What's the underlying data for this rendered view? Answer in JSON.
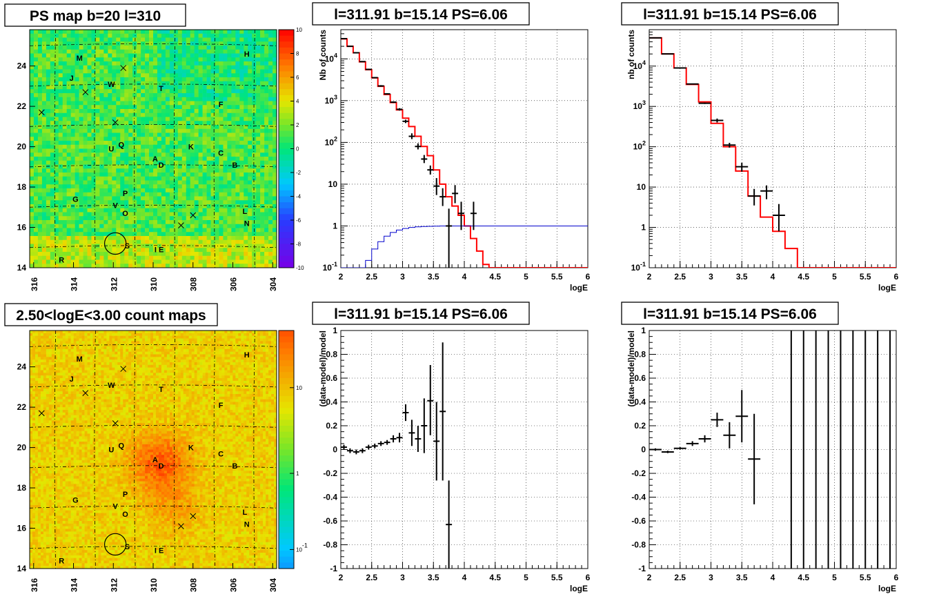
{
  "map_panels": [
    {
      "title": "PS map b=20 l=310",
      "x_ticks": [
        "316",
        "314",
        "312",
        "310",
        "308",
        "306",
        "304"
      ],
      "y_ticks": [
        "14",
        "16",
        "18",
        "20",
        "22",
        "24"
      ],
      "colorbar_ticks": [
        "10",
        "8",
        "6",
        "4",
        "2",
        "0",
        "-2",
        "-4",
        "-6",
        "-8",
        "-10"
      ],
      "palette": "ps"
    },
    {
      "title": "2.50<logE<3.00 count maps",
      "x_ticks": [
        "316",
        "314",
        "312",
        "310",
        "308",
        "306",
        "304"
      ],
      "y_ticks": [
        "14",
        "16",
        "18",
        "20",
        "22",
        "24"
      ],
      "colorbar_ticks": [
        "10",
        "1",
        "10^-1"
      ],
      "palette": "counts"
    }
  ],
  "source_labels": [
    {
      "t": "M",
      "l": 313.7,
      "b": 24.4
    },
    {
      "t": "H",
      "l": 305.3,
      "b": 24.6
    },
    {
      "t": "J",
      "l": 314.1,
      "b": 23.4
    },
    {
      "t": "W",
      "l": 312.1,
      "b": 23.1
    },
    {
      "t": "T",
      "l": 309.6,
      "b": 22.9
    },
    {
      "t": "F",
      "l": 306.6,
      "b": 22.1
    },
    {
      "t": "U",
      "l": 312.1,
      "b": 19.9
    },
    {
      "t": "Q",
      "l": 311.6,
      "b": 20.1
    },
    {
      "t": "K",
      "l": 308.1,
      "b": 20.0
    },
    {
      "t": "C",
      "l": 306.6,
      "b": 19.7
    },
    {
      "t": "A",
      "l": 309.9,
      "b": 19.4
    },
    {
      "t": "D",
      "l": 309.6,
      "b": 19.1
    },
    {
      "t": "B",
      "l": 305.9,
      "b": 19.1
    },
    {
      "t": "G",
      "l": 313.9,
      "b": 17.4
    },
    {
      "t": "P",
      "l": 311.4,
      "b": 17.7
    },
    {
      "t": "V",
      "l": 311.9,
      "b": 17.1
    },
    {
      "t": "O",
      "l": 311.4,
      "b": 16.7
    },
    {
      "t": "L",
      "l": 305.4,
      "b": 16.8
    },
    {
      "t": "N",
      "l": 305.3,
      "b": 16.2
    },
    {
      "t": "S",
      "l": 311.3,
      "b": 15.1
    },
    {
      "t": "I E",
      "l": 309.7,
      "b": 14.9
    },
    {
      "t": "R",
      "l": 314.6,
      "b": 14.4
    }
  ],
  "crosses": [
    {
      "l": 311.5,
      "b": 23.9
    },
    {
      "l": 313.4,
      "b": 22.7
    },
    {
      "l": 315.6,
      "b": 21.7
    },
    {
      "l": 311.9,
      "b": 21.2
    },
    {
      "l": 308.6,
      "b": 16.1
    },
    {
      "l": 308.0,
      "b": 16.6
    }
  ],
  "circle": {
    "l": 311.9,
    "b": 15.2,
    "r": 0.45
  },
  "chart_data": [
    {
      "type": "line",
      "title": "l=311.91 b=15.14 PS=6.06",
      "xlabel": "logE",
      "ylabel": "Nb of counts",
      "yscale": "log",
      "xlim": [
        2,
        6
      ],
      "ylim": [
        0.1,
        50000
      ],
      "x_ticks": [
        "2",
        "2.5",
        "3",
        "3.5",
        "4",
        "4.5",
        "5",
        "5.5",
        "6"
      ],
      "y_ticks": [
        "10^-1",
        "1",
        "10",
        "10^2",
        "10^3",
        "10^4"
      ],
      "series": [
        {
          "style": "step",
          "color": "#ff0000",
          "bin_edges": [
            2.0,
            2.1,
            2.2,
            2.3,
            2.4,
            2.5,
            2.6,
            2.7,
            2.8,
            2.9,
            3.0,
            3.1,
            3.2,
            3.3,
            3.4,
            3.5,
            3.6,
            3.7,
            3.8,
            3.9,
            4.0,
            4.1,
            4.2,
            4.3,
            4.4,
            6.0
          ],
          "values": [
            30000,
            20000,
            14000,
            8500,
            5500,
            3500,
            2200,
            1400,
            900,
            600,
            380,
            240,
            140,
            80,
            48,
            22,
            10,
            5,
            3,
            1.8,
            1.0,
            0.5,
            0.25,
            0.12,
            0.1
          ]
        },
        {
          "style": "step",
          "color": "#0000cc",
          "bin_edges": [
            2.0,
            2.1,
            2.2,
            2.3,
            2.4,
            2.5,
            2.6,
            2.7,
            2.8,
            2.9,
            3.0,
            3.1,
            3.2,
            3.3,
            3.4,
            3.5,
            3.6,
            3.7,
            3.8,
            3.9,
            6.0
          ],
          "values": [
            0.1,
            0.1,
            0.1,
            0.1,
            0.15,
            0.28,
            0.42,
            0.57,
            0.7,
            0.8,
            0.87,
            0.92,
            0.95,
            0.97,
            0.98,
            0.99,
            1.0,
            1.0,
            1.0,
            1.0
          ]
        },
        {
          "style": "errorbars",
          "color": "#000000",
          "x": [
            2.05,
            2.15,
            2.25,
            2.35,
            2.45,
            2.55,
            2.65,
            2.75,
            2.85,
            2.95,
            3.05,
            3.15,
            3.25,
            3.35,
            3.45,
            3.55,
            3.65,
            3.75,
            3.85,
            3.95,
            4.15
          ],
          "y": [
            30500,
            20000,
            14000,
            8600,
            5600,
            3550,
            2250,
            1450,
            920,
            620,
            320,
            140,
            80,
            40,
            22,
            9,
            5,
            1,
            6,
            2,
            2
          ],
          "lo": [
            29800,
            19500,
            13600,
            8400,
            5400,
            3450,
            2150,
            1400,
            880,
            580,
            290,
            120,
            68,
            32,
            17,
            5.5,
            3,
            0.1,
            3.5,
            0.8,
            0.8
          ],
          "hi": [
            31200,
            20500,
            14400,
            8800,
            5800,
            3650,
            2350,
            1500,
            960,
            660,
            350,
            165,
            95,
            50,
            28,
            14,
            8,
            2.6,
            9.5,
            3.8,
            3.8
          ]
        }
      ]
    },
    {
      "type": "line",
      "title": "l=311.91 b=15.14 PS=6.06",
      "xlabel": "logE",
      "ylabel": "nb of counts",
      "yscale": "log",
      "xlim": [
        2,
        6
      ],
      "ylim": [
        0.1,
        80000
      ],
      "x_ticks": [
        "2",
        "2.5",
        "3",
        "3.5",
        "4",
        "4.5",
        "5",
        "5.5",
        "6"
      ],
      "y_ticks": [
        "10^-1",
        "1",
        "10",
        "10^2",
        "10^3",
        "10^4"
      ],
      "series": [
        {
          "style": "step",
          "color": "#ff0000",
          "bin_edges": [
            2.0,
            2.2,
            2.4,
            2.6,
            2.8,
            3.0,
            3.2,
            3.4,
            3.6,
            3.8,
            4.0,
            4.2,
            4.4,
            6.0
          ],
          "values": [
            50000,
            20000,
            9000,
            3500,
            1300,
            380,
            100,
            25,
            6,
            1.8,
            0.8,
            0.3,
            0.1
          ]
        },
        {
          "style": "errorbars",
          "color": "#000000",
          "x": [
            2.1,
            2.3,
            2.5,
            2.7,
            2.9,
            3.1,
            3.3,
            3.5,
            3.7,
            3.9,
            4.1
          ],
          "y": [
            50000,
            20000,
            9000,
            3600,
            1200,
            450,
            110,
            32,
            6,
            8,
            2
          ],
          "lo": [
            49000,
            19500,
            8800,
            3500,
            1150,
            400,
            95,
            24,
            3.5,
            5,
            0.8
          ],
          "hi": [
            51000,
            20500,
            9200,
            3700,
            1250,
            500,
            125,
            40,
            9,
            11,
            3.8
          ]
        }
      ]
    },
    {
      "type": "scatter",
      "title": "l=311.91 b=15.14 PS=6.06",
      "xlabel": "logE",
      "ylabel": "(data-model)/model",
      "xlim": [
        2,
        6
      ],
      "ylim": [
        -1,
        1
      ],
      "x_ticks": [
        "2",
        "2.5",
        "3",
        "3.5",
        "4",
        "4.5",
        "5",
        "5.5",
        "6"
      ],
      "y_ticks": [
        "-1",
        "-0.8",
        "-0.6",
        "-0.4",
        "-0.2",
        "0",
        "0.2",
        "0.4",
        "0.6",
        "0.8",
        "1"
      ],
      "series": [
        {
          "style": "errorbars",
          "color": "#000000",
          "x": [
            2.05,
            2.15,
            2.25,
            2.35,
            2.45,
            2.55,
            2.65,
            2.75,
            2.85,
            2.95,
            3.05,
            3.15,
            3.25,
            3.35,
            3.45,
            3.55,
            3.65,
            3.75
          ],
          "y": [
            0.02,
            -0.01,
            -0.02,
            -0.01,
            0.02,
            0.03,
            0.05,
            0.06,
            0.09,
            0.1,
            0.31,
            0.14,
            0.09,
            0.2,
            0.41,
            0.07,
            0.32,
            -0.63
          ],
          "lo": [
            0.0,
            -0.03,
            -0.04,
            -0.03,
            0.0,
            0.01,
            0.03,
            0.04,
            0.06,
            0.06,
            0.24,
            0.03,
            -0.02,
            -0.03,
            0.12,
            -0.26,
            -0.26,
            -1.0
          ],
          "hi": [
            0.04,
            0.01,
            0.0,
            0.01,
            0.04,
            0.05,
            0.07,
            0.08,
            0.12,
            0.14,
            0.38,
            0.25,
            0.2,
            0.43,
            0.71,
            0.4,
            0.9,
            -0.26
          ]
        }
      ]
    },
    {
      "type": "scatter",
      "title": "l=311.91 b=15.14 PS=6.06",
      "xlabel": "logE",
      "ylabel": "(data-model)/model",
      "xlim": [
        2,
        6
      ],
      "ylim": [
        -1,
        1
      ],
      "x_ticks": [
        "2",
        "2.5",
        "3",
        "3.5",
        "4",
        "4.5",
        "5",
        "5.5",
        "6"
      ],
      "y_ticks": [
        "-1",
        "-0.8",
        "-0.6",
        "-0.4",
        "-0.2",
        "0",
        "0.2",
        "0.4",
        "0.6",
        "0.8",
        "1"
      ],
      "series": [
        {
          "style": "errorbars",
          "color": "#000000",
          "x": [
            2.1,
            2.3,
            2.5,
            2.7,
            2.9,
            3.1,
            3.3,
            3.5,
            3.7
          ],
          "y": [
            0.0,
            -0.02,
            0.01,
            0.05,
            0.09,
            0.25,
            0.12,
            0.28,
            -0.08
          ],
          "lo": [
            -0.01,
            -0.03,
            0.0,
            0.03,
            0.06,
            0.19,
            0.01,
            0.06,
            -0.46
          ],
          "hi": [
            0.01,
            -0.01,
            0.02,
            0.07,
            0.12,
            0.31,
            0.23,
            0.5,
            0.3
          ]
        },
        {
          "style": "vlines",
          "color": "#000000",
          "x": [
            4.3,
            4.5,
            4.7,
            4.9,
            5.1,
            5.3,
            5.5,
            5.7,
            5.9
          ],
          "lo": [
            -1,
            -1,
            -1,
            -1,
            -1,
            -1,
            -1,
            -1,
            -1
          ],
          "hi": [
            1,
            1,
            1,
            1,
            1,
            1,
            1,
            1,
            1
          ]
        }
      ]
    }
  ]
}
